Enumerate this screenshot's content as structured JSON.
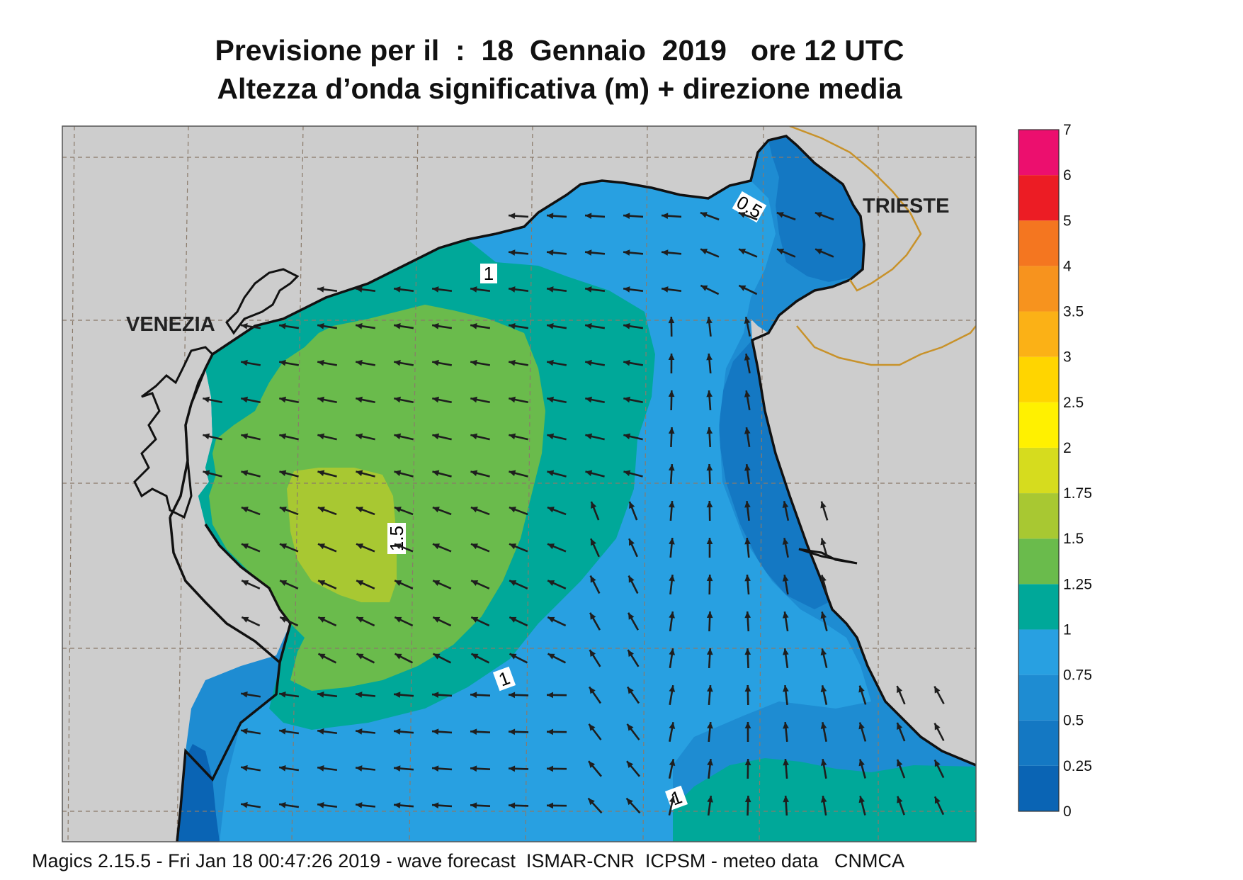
{
  "title_line1": "Previsione per il  :  18  Gennaio  2019   ore 12 UTC",
  "title_line2": "Altezza d’onda significativa (m) + direzione media",
  "footer": "Magics 2.15.5 - Fri Jan 18 00:47:26 2019 - wave forecast  ISMAR-CNR  ICPSM - meteo data   CNMCA",
  "cities": {
    "venezia": "VENEZIA",
    "trieste": "TRIESTE"
  },
  "contour_labels": [
    "0.5",
    "1",
    "1.5",
    "1",
    "1"
  ],
  "colorbar": {
    "ticks": [
      "0",
      "0.25",
      "0.5",
      "0.75",
      "1",
      "1.25",
      "1.5",
      "1.75",
      "2",
      "2.5",
      "3",
      "3.5",
      "4",
      "5",
      "6",
      "7"
    ],
    "colors": [
      "#0a64b4",
      "#1478c3",
      "#1e8cd2",
      "#28a0e1",
      "#00a899",
      "#6abb4c",
      "#a8c832",
      "#d6dc1e",
      "#fff100",
      "#ffd500",
      "#fbb116",
      "#f7931e",
      "#f47620",
      "#ec1c24",
      "#ec0f6e"
    ]
  },
  "colors": {
    "land": "#cdcdcd",
    "border": "#c8922a",
    "grid": "#8a7a6a",
    "arrow": "#1e1e1e"
  }
}
